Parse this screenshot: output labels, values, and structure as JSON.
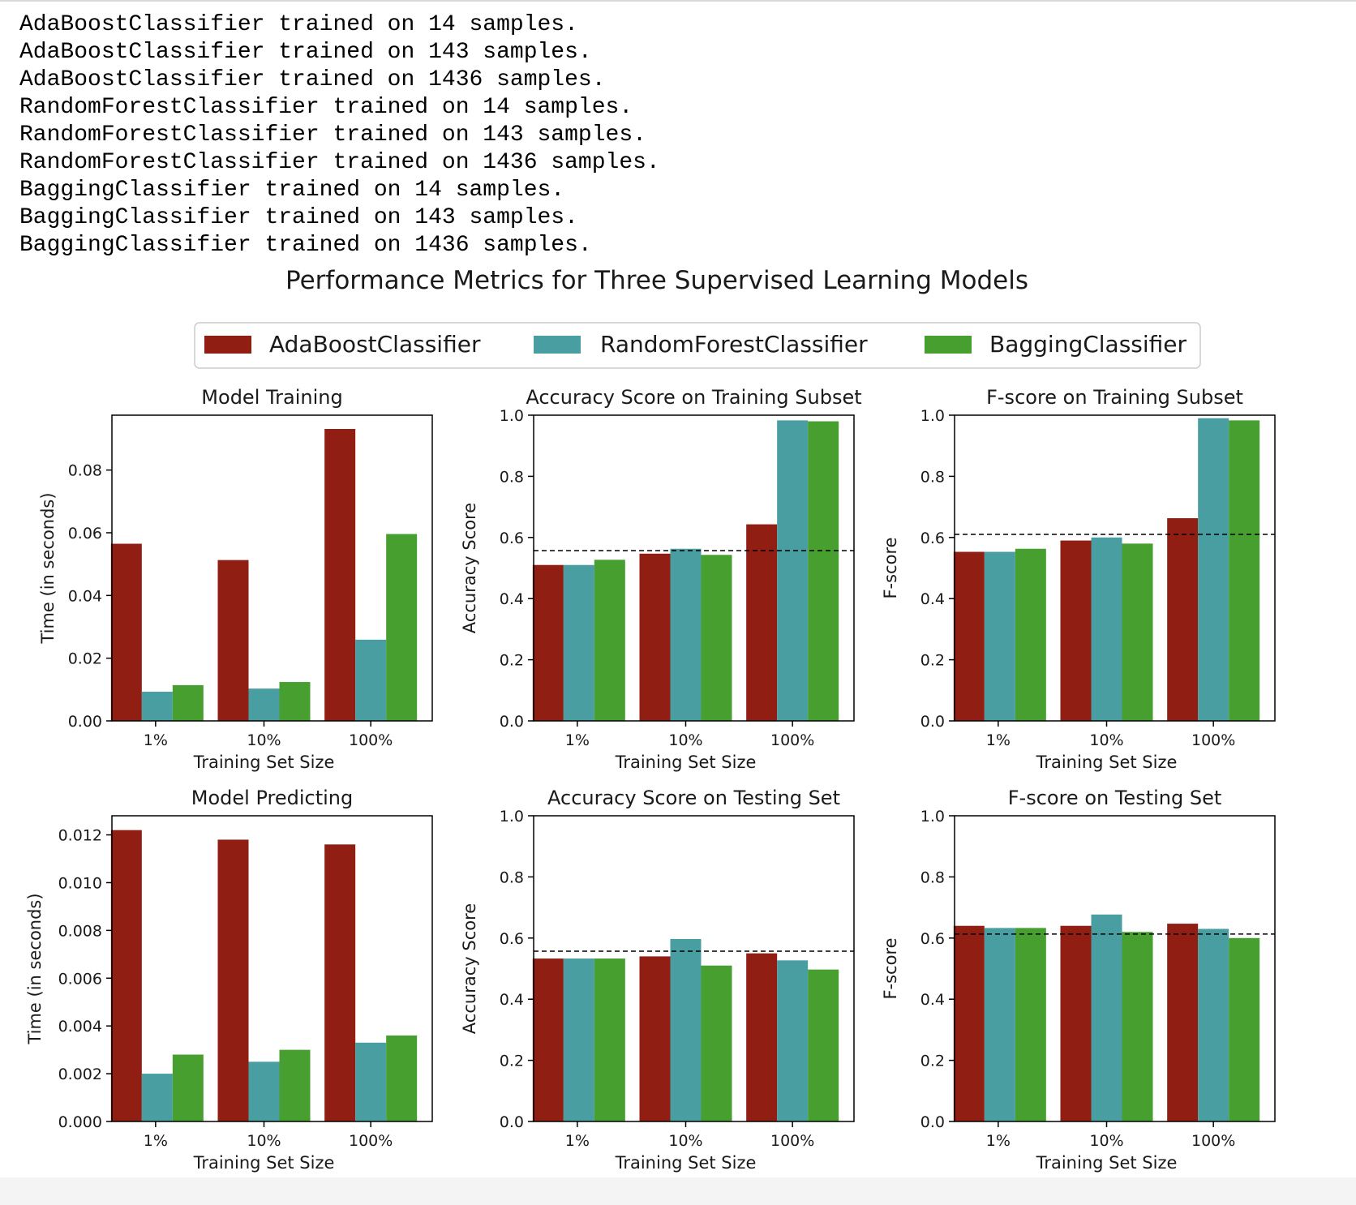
{
  "output_lines": [
    "AdaBoostClassifier trained on 14 samples.",
    "AdaBoostClassifier trained on 143 samples.",
    "AdaBoostClassifier trained on 1436 samples.",
    "RandomForestClassifier trained on 14 samples.",
    "RandomForestClassifier trained on 143 samples.",
    "RandomForestClassifier trained on 1436 samples.",
    "BaggingClassifier trained on 14 samples.",
    "BaggingClassifier trained on 143 samples.",
    "BaggingClassifier trained on 1436 samples."
  ],
  "figure": {
    "title": "Performance Metrics for Three Supervised Learning Models",
    "legend": {
      "placement": "top-center",
      "entries": [
        "AdaBoostClassifier",
        "RandomForestClassifier",
        "BaggingClassifier"
      ]
    },
    "colors": {
      "AdaBoostClassifier": "#911e13",
      "RandomForestClassifier": "#489ea1",
      "BaggingClassifier": "#479f2f"
    }
  },
  "chart_data": [
    {
      "type": "bar",
      "title": "Model Training",
      "xlabel": "Training Set Size",
      "ylabel": "Time (in seconds)",
      "categories": [
        "1%",
        "10%",
        "100%"
      ],
      "ylim": [
        0,
        0.0975
      ],
      "yticks": [
        "0.00",
        "0.02",
        "0.04",
        "0.06",
        "0.08"
      ],
      "ytick_values": [
        0,
        0.02,
        0.04,
        0.06,
        0.08
      ],
      "series": [
        {
          "name": "AdaBoostClassifier",
          "values": [
            0.0565,
            0.0513,
            0.0931
          ]
        },
        {
          "name": "RandomForestClassifier",
          "values": [
            0.0093,
            0.0103,
            0.0259
          ]
        },
        {
          "name": "BaggingClassifier",
          "values": [
            0.0114,
            0.0124,
            0.0596
          ]
        }
      ]
    },
    {
      "type": "bar",
      "title": "Accuracy Score on Training Subset",
      "xlabel": "Training Set Size",
      "ylabel": "Accuracy Score",
      "categories": [
        "1%",
        "10%",
        "100%"
      ],
      "ylim": [
        0,
        1.0
      ],
      "yticks": [
        "0.0",
        "0.2",
        "0.4",
        "0.6",
        "0.8",
        "1.0"
      ],
      "ytick_values": [
        0,
        0.2,
        0.4,
        0.6,
        0.8,
        1.0
      ],
      "baseline": 0.557,
      "series": [
        {
          "name": "AdaBoostClassifier",
          "values": [
            0.51,
            0.547,
            0.643
          ]
        },
        {
          "name": "RandomForestClassifier",
          "values": [
            0.51,
            0.563,
            0.983
          ]
        },
        {
          "name": "BaggingClassifier",
          "values": [
            0.527,
            0.543,
            0.98
          ]
        }
      ]
    },
    {
      "type": "bar",
      "title": "F-score on Training Subset",
      "xlabel": "Training Set Size",
      "ylabel": "F-score",
      "categories": [
        "1%",
        "10%",
        "100%"
      ],
      "ylim": [
        0,
        1.0
      ],
      "yticks": [
        "0.0",
        "0.2",
        "0.4",
        "0.6",
        "0.8",
        "1.0"
      ],
      "ytick_values": [
        0,
        0.2,
        0.4,
        0.6,
        0.8,
        1.0
      ],
      "baseline": 0.61,
      "series": [
        {
          "name": "AdaBoostClassifier",
          "values": [
            0.553,
            0.59,
            0.663
          ]
        },
        {
          "name": "RandomForestClassifier",
          "values": [
            0.553,
            0.6,
            0.99
          ]
        },
        {
          "name": "BaggingClassifier",
          "values": [
            0.563,
            0.58,
            0.983
          ]
        }
      ]
    },
    {
      "type": "bar",
      "title": "Model Predicting",
      "xlabel": "Training Set Size",
      "ylabel": "Time (in seconds)",
      "categories": [
        "1%",
        "10%",
        "100%"
      ],
      "ylim": [
        0,
        0.0128
      ],
      "yticks": [
        "0.000",
        "0.002",
        "0.004",
        "0.006",
        "0.008",
        "0.010",
        "0.012"
      ],
      "ytick_values": [
        0,
        0.002,
        0.004,
        0.006,
        0.008,
        0.01,
        0.012
      ],
      "series": [
        {
          "name": "AdaBoostClassifier",
          "values": [
            0.0122,
            0.0118,
            0.0116
          ]
        },
        {
          "name": "RandomForestClassifier",
          "values": [
            0.002,
            0.0025,
            0.0033
          ]
        },
        {
          "name": "BaggingClassifier",
          "values": [
            0.0028,
            0.003,
            0.0036
          ]
        }
      ]
    },
    {
      "type": "bar",
      "title": "Accuracy Score on Testing Set",
      "xlabel": "Training Set Size",
      "ylabel": "Accuracy Score",
      "categories": [
        "1%",
        "10%",
        "100%"
      ],
      "ylim": [
        0,
        1.0
      ],
      "yticks": [
        "0.0",
        "0.2",
        "0.4",
        "0.6",
        "0.8",
        "1.0"
      ],
      "ytick_values": [
        0,
        0.2,
        0.4,
        0.6,
        0.8,
        1.0
      ],
      "baseline": 0.557,
      "series": [
        {
          "name": "AdaBoostClassifier",
          "values": [
            0.533,
            0.54,
            0.55
          ]
        },
        {
          "name": "RandomForestClassifier",
          "values": [
            0.533,
            0.597,
            0.527
          ]
        },
        {
          "name": "BaggingClassifier",
          "values": [
            0.533,
            0.51,
            0.497
          ]
        }
      ]
    },
    {
      "type": "bar",
      "title": "F-score on Testing Set",
      "xlabel": "Training Set Size",
      "ylabel": "F-score",
      "categories": [
        "1%",
        "10%",
        "100%"
      ],
      "ylim": [
        0,
        1.0
      ],
      "yticks": [
        "0.0",
        "0.2",
        "0.4",
        "0.6",
        "0.8",
        "1.0"
      ],
      "ytick_values": [
        0,
        0.2,
        0.4,
        0.6,
        0.8,
        1.0
      ],
      "baseline": 0.613,
      "series": [
        {
          "name": "AdaBoostClassifier",
          "values": [
            0.64,
            0.64,
            0.647
          ]
        },
        {
          "name": "RandomForestClassifier",
          "values": [
            0.633,
            0.677,
            0.63
          ]
        },
        {
          "name": "BaggingClassifier",
          "values": [
            0.633,
            0.62,
            0.6
          ]
        }
      ]
    }
  ]
}
